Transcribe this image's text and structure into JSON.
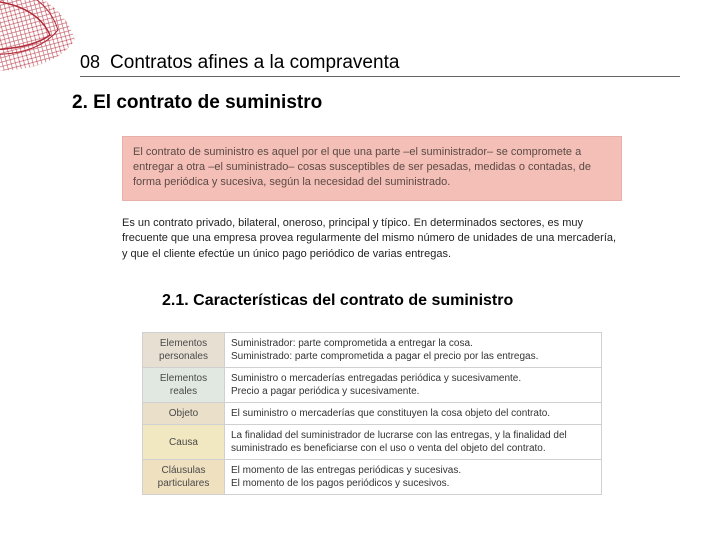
{
  "chapter": {
    "number": "08",
    "title": "Contratos afines a la compraventa"
  },
  "section": {
    "title": "2. El contrato de suministro"
  },
  "definition": {
    "text": "El contrato de suministro es aquel por el que una parte –el suministrador– se compromete a entregar a otra –el suministrado– cosas susceptibles de ser pesadas, medidas o contadas, de forma periódica y sucesiva, según la necesidad del suministrado.",
    "bg": "#f4bfb6"
  },
  "body": {
    "text": "Es un contrato privado, bilateral, oneroso, principal y típico. En determinados sectores, es muy frecuente que una empresa provea regularmente del mismo número de unidades de una mercadería, y que el cliente efectúe un único pago periódico de varias entregas."
  },
  "subsection": {
    "title": "2.1. Características del contrato de suministro"
  },
  "table": {
    "rows": [
      {
        "label": "Elementos personales",
        "bg": "#e8dfd3",
        "lines": [
          "Suministrador: parte comprometida a entregar la cosa.",
          "Suministrado: parte comprometida a pagar el precio por las entregas."
        ]
      },
      {
        "label": "Elementos reales",
        "bg": "#e1e8e1",
        "lines": [
          "Suministro o mercaderías entregadas periódica y sucesivamente.",
          "Precio a pagar periódica y sucesivamente."
        ]
      },
      {
        "label": "Objeto",
        "bg": "#eadfc9",
        "lines": [
          "El suministro o mercaderías que constituyen la cosa objeto del contrato."
        ]
      },
      {
        "label": "Causa",
        "bg": "#f1e7c0",
        "lines": [
          "La finalidad del suministrador de lucrarse con las entregas, y la finalidad del suministrado es beneficiarse con el uso o venta del objeto del contrato."
        ]
      },
      {
        "label": "Cláusulas particulares",
        "bg": "#efe0c0",
        "lines": [
          "El momento de las entregas periódicas y sucesivas.",
          "El momento de los pagos periódicos y sucesivos."
        ]
      }
    ]
  },
  "style": {
    "deco_stroke": "#b12a38",
    "deco_fill_light": "#e9d4d7"
  }
}
